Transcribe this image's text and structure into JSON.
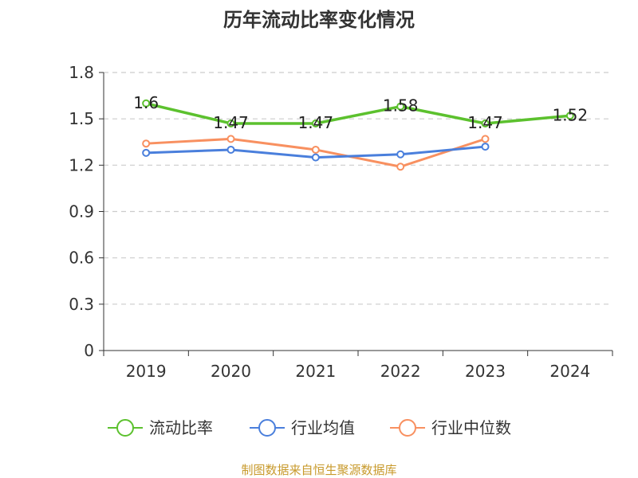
{
  "chart_data": {
    "type": "line",
    "title": "历年流动比率变化情况",
    "xlabel": "",
    "ylabel": "",
    "categories": [
      "2019",
      "2020",
      "2021",
      "2022",
      "2023",
      "2024"
    ],
    "ylim": [
      0,
      1.8
    ],
    "yticks": [
      "0",
      "0.3",
      "0.6",
      "0.9",
      "1.2",
      "1.5",
      "1.8"
    ],
    "grid": true,
    "legend_position": "bottom",
    "series": [
      {
        "name": "流动比率",
        "color": "#5cc12e",
        "values": [
          1.6,
          1.47,
          1.47,
          1.58,
          1.47,
          1.52
        ],
        "labels": [
          "1.6",
          "1.47",
          "1.47",
          "1.58",
          "1.47",
          "1.52"
        ]
      },
      {
        "name": "行业均值",
        "color": "#4a7fdc",
        "values": [
          1.28,
          1.3,
          1.25,
          1.27,
          1.32,
          null
        ]
      },
      {
        "name": "行业中位数",
        "color": "#f89060",
        "values": [
          1.34,
          1.37,
          1.3,
          1.19,
          1.37,
          null
        ]
      }
    ]
  },
  "source": "制图数据来自恒生聚源数据库"
}
